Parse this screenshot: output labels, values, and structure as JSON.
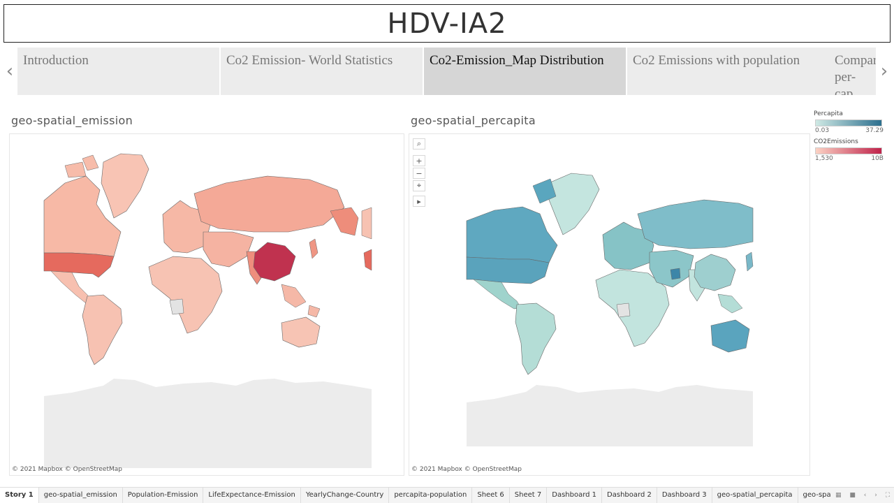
{
  "title": "HDV-IA2",
  "story": {
    "points": [
      {
        "label": "Introduction"
      },
      {
        "label": "Co2 Emission- World Statistics"
      },
      {
        "label": "Co2-Emission_Map Distribution"
      },
      {
        "label": "Co2 Emissions with population"
      },
      {
        "label": "Compar per-cap"
      }
    ],
    "active_index": 2,
    "prev_icon": "chevron-left",
    "next_icon": "chevron-right"
  },
  "sheets": {
    "left_title": "geo-spatial_emission",
    "right_title": "geo-spatial_percapita",
    "attribution": "© 2021 Mapbox © OpenStreetMap"
  },
  "map_tools": [
    "search",
    "zoom-in",
    "zoom-out",
    "pan-select",
    "expand"
  ],
  "legend": {
    "percapita": {
      "title": "Percapita",
      "min": "0.03",
      "max": "37.29",
      "color_low": "#cfe9e4",
      "color_high": "#2c6f8e"
    },
    "co2": {
      "title": "CO2Emissions",
      "min": "1,530",
      "max": "10B",
      "color_low": "#fbd2c4",
      "color_high": "#c0224a"
    }
  },
  "bottom_tabs": [
    {
      "label": "Story 1",
      "active": true
    },
    {
      "label": "geo-spatial_emission"
    },
    {
      "label": "Population-Emission"
    },
    {
      "label": "LifeExpectance-Emission"
    },
    {
      "label": "YearlyChange-Country"
    },
    {
      "label": "percapita-population"
    },
    {
      "label": "Sheet 6"
    },
    {
      "label": "Sheet 7"
    },
    {
      "label": "Dashboard 1"
    },
    {
      "label": "Dashboard 2"
    },
    {
      "label": "Dashboard 3"
    },
    {
      "label": "geo-spatial_percapita"
    },
    {
      "label": "geo-spatial_percapit"
    }
  ]
}
